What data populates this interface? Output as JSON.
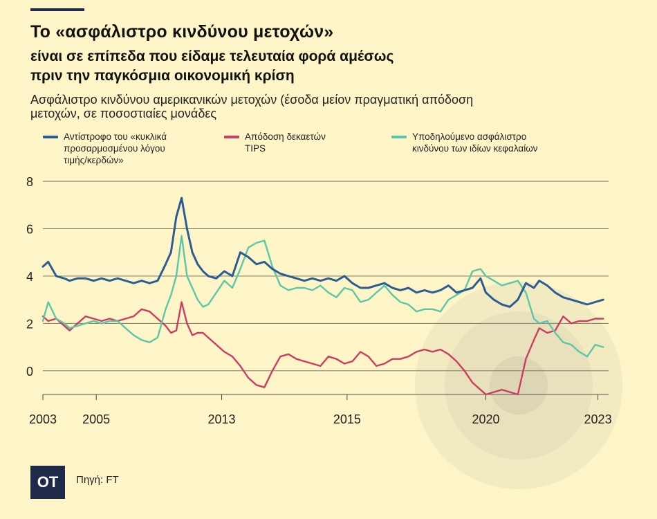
{
  "title": "Το «ασφάλιστρο κινδύνου μετοχών»",
  "subtitle_bold_1": "είναι σε επίπεδα που είδαμε τελευταία φορά αμέσως",
  "subtitle_bold_2": "πριν την παγκόσμια οικονομική κρίση",
  "subtitle_1": "Ασφάλιστρο κινδύνου αμερικανικών μετοχών (έσοδα μείον πραγματική απόδοση",
  "subtitle_2": "μετοχών, σε ποσοστιαίες μονάδες",
  "legend": [
    {
      "lines": [
        "Αντίστροφο του «κυκλικά",
        "προσαρμοσμένου λόγου",
        "τιμής/κερδών»"
      ],
      "color": "#2b5c92"
    },
    {
      "lines": [
        "Απόδοση δεκαετών",
        "TIPS"
      ],
      "color": "#cc3d62"
    },
    {
      "lines": [
        "Υποδηλούμενο ασφάλιστρο",
        "κινδύνου των ιδίων κεφαλαίων"
      ],
      "color": "#5cc6a8"
    }
  ],
  "source": "Πηγή: FT",
  "logo": "OT",
  "colors": {
    "background": "#fdf5c7",
    "navy": "#1f2a4a"
  },
  "chart_data": {
    "type": "line",
    "title": "Το «ασφάλιστρο κινδύνου μετοχών»",
    "ylabel": "",
    "xlabel": "",
    "ylim": [
      -1,
      8
    ],
    "yticks": [
      0,
      2,
      4,
      6,
      8
    ],
    "xlim": [
      2003,
      2024.2
    ],
    "xtick_labels": [
      {
        "label": "2003",
        "x": 2003
      },
      {
        "label": "2005",
        "x": 2005
      },
      {
        "label": "2013",
        "x": 2009.7
      },
      {
        "label": "2015",
        "x": 2014.4
      },
      {
        "label": "2020",
        "x": 2019.6
      },
      {
        "label": "2023",
        "x": 2023.8
      }
    ],
    "x": [
      2003.0,
      2003.2,
      2003.5,
      2003.8,
      2004.0,
      2004.3,
      2004.6,
      2004.9,
      2005.2,
      2005.5,
      2005.8,
      2006.1,
      2006.4,
      2006.7,
      2007.0,
      2007.3,
      2007.6,
      2007.8,
      2008.0,
      2008.2,
      2008.4,
      2008.6,
      2008.8,
      2009.0,
      2009.2,
      2009.5,
      2009.8,
      2010.1,
      2010.4,
      2010.7,
      2011.0,
      2011.3,
      2011.6,
      2011.9,
      2012.2,
      2012.5,
      2012.8,
      2013.1,
      2013.4,
      2013.7,
      2014.0,
      2014.3,
      2014.6,
      2014.9,
      2015.2,
      2015.5,
      2015.8,
      2016.1,
      2016.4,
      2016.7,
      2017.0,
      2017.3,
      2017.6,
      2017.9,
      2018.2,
      2018.5,
      2018.8,
      2019.1,
      2019.4,
      2019.6,
      2019.9,
      2020.2,
      2020.5,
      2020.8,
      2021.1,
      2021.4,
      2021.6,
      2021.9,
      2022.2,
      2022.5,
      2022.8,
      2023.1,
      2023.4,
      2023.7,
      2024.0
    ],
    "series": [
      {
        "name": "Αντίστροφο του «κυκλικά προσαρμοσμένου λόγου τιμής/κερδών»",
        "color": "#2b5c92",
        "values": [
          4.4,
          4.6,
          4.0,
          3.9,
          3.8,
          3.9,
          3.9,
          3.8,
          3.9,
          3.8,
          3.9,
          3.8,
          3.7,
          3.8,
          3.7,
          3.8,
          4.5,
          5.0,
          6.5,
          7.3,
          6.0,
          5.0,
          4.5,
          4.2,
          4.0,
          3.9,
          4.2,
          4.0,
          5.0,
          4.8,
          4.5,
          4.6,
          4.3,
          4.1,
          4.0,
          3.9,
          3.8,
          3.9,
          3.8,
          3.9,
          3.8,
          4.0,
          3.7,
          3.5,
          3.5,
          3.6,
          3.7,
          3.5,
          3.4,
          3.5,
          3.3,
          3.4,
          3.3,
          3.4,
          3.6,
          3.3,
          3.4,
          3.5,
          3.9,
          3.3,
          3.0,
          2.8,
          2.7,
          3.0,
          3.7,
          3.5,
          3.8,
          3.6,
          3.3,
          3.1,
          3.0,
          2.9,
          2.8,
          2.9,
          3.0
        ]
      },
      {
        "name": "Απόδοση δεκαετών TIPS",
        "color": "#cc3d62",
        "values": [
          2.3,
          2.1,
          2.2,
          1.9,
          1.7,
          2.0,
          2.3,
          2.2,
          2.1,
          2.2,
          2.1,
          2.2,
          2.3,
          2.6,
          2.5,
          2.2,
          1.9,
          1.6,
          1.7,
          2.9,
          2.0,
          1.5,
          1.6,
          1.6,
          1.4,
          1.1,
          0.8,
          0.6,
          0.2,
          -0.3,
          -0.6,
          -0.7,
          0.0,
          0.6,
          0.7,
          0.5,
          0.4,
          0.3,
          0.2,
          0.6,
          0.5,
          0.3,
          0.4,
          0.8,
          0.6,
          0.2,
          0.3,
          0.5,
          0.5,
          0.6,
          0.8,
          0.9,
          0.8,
          0.9,
          0.7,
          0.4,
          0.0,
          -0.5,
          -0.8,
          -1.0,
          -0.9,
          -0.8,
          -0.9,
          -1.0,
          0.5,
          1.3,
          1.8,
          1.6,
          1.7,
          2.3,
          2.0,
          2.1,
          2.1,
          2.2,
          2.2
        ]
      },
      {
        "name": "Υποδηλούμενο ασφάλιστρο κινδύνου των ιδίων κεφαλαίων",
        "color": "#5cc6a8",
        "values": [
          2.1,
          2.9,
          2.2,
          2.0,
          1.8,
          1.9,
          2.0,
          2.1,
          2.0,
          2.1,
          2.1,
          1.8,
          1.5,
          1.3,
          1.2,
          1.4,
          2.6,
          3.2,
          4.0,
          5.7,
          4.0,
          3.5,
          3.0,
          2.7,
          2.8,
          3.3,
          3.8,
          3.5,
          4.3,
          5.2,
          5.4,
          5.5,
          4.4,
          3.6,
          3.4,
          3.5,
          3.5,
          3.4,
          3.6,
          3.3,
          3.1,
          3.5,
          3.4,
          2.9,
          3.0,
          3.3,
          3.6,
          3.2,
          2.9,
          2.8,
          2.5,
          2.6,
          2.6,
          2.5,
          3.0,
          3.2,
          3.4,
          4.2,
          4.3,
          4.0,
          3.8,
          3.6,
          3.7,
          3.8,
          3.3,
          2.2,
          2.0,
          2.1,
          1.6,
          1.2,
          1.1,
          0.8,
          0.6,
          1.1,
          1.0
        ]
      }
    ],
    "grid": true,
    "legend_position": "top"
  }
}
